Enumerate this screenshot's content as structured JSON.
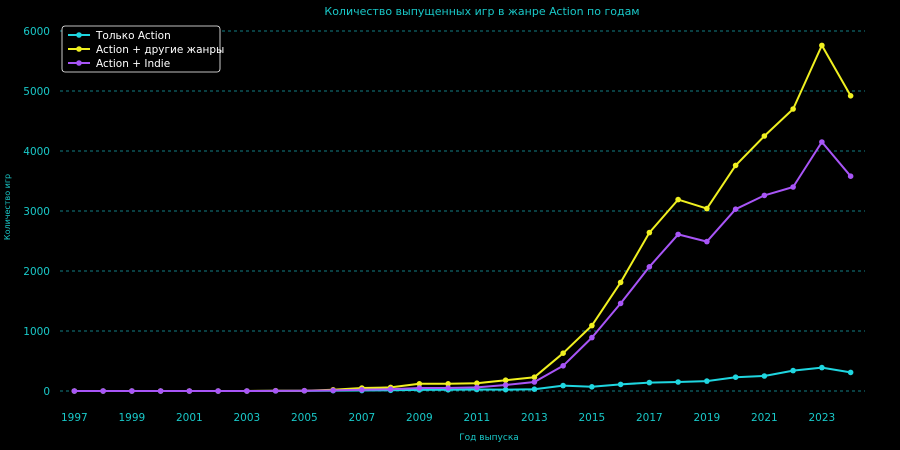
{
  "chart_data": {
    "type": "line",
    "title": "Количество выпущенных игр в жанре Action по годам",
    "xlabel": "Год выпуска",
    "ylabel": "Количество игр",
    "x": [
      1997,
      1998,
      1999,
      2000,
      2001,
      2002,
      2003,
      2004,
      2005,
      2006,
      2007,
      2008,
      2009,
      2010,
      2011,
      2012,
      2013,
      2014,
      2015,
      2016,
      2017,
      2018,
      2019,
      2020,
      2021,
      2022,
      2023,
      2024
    ],
    "x_ticks": [
      "1997",
      "1999",
      "2001",
      "2003",
      "2005",
      "2007",
      "2009",
      "2011",
      "2013",
      "2015",
      "2017",
      "2019",
      "2021",
      "2023"
    ],
    "y_ticks": [
      "0",
      "1000",
      "2000",
      "3000",
      "4000",
      "5000",
      "6000"
    ],
    "xlim": [
      1996.5,
      2024.5
    ],
    "ylim": [
      -150,
      6150
    ],
    "grid": "horizontal dashed",
    "legend_position": "top-left",
    "series": [
      {
        "name": "Только Action",
        "color": "#1fd6e0",
        "values": [
          0,
          0,
          0,
          0,
          0,
          0,
          0,
          2,
          3,
          5,
          8,
          12,
          18,
          20,
          25,
          22,
          30,
          90,
          70,
          110,
          140,
          150,
          165,
          230,
          250,
          340,
          390,
          310
        ]
      },
      {
        "name": "Action + другие жанры",
        "color": "#f0f020",
        "values": [
          0,
          0,
          0,
          0,
          0,
          0,
          0,
          5,
          5,
          20,
          50,
          60,
          120,
          120,
          130,
          180,
          230,
          630,
          1090,
          1810,
          2640,
          3190,
          3040,
          3760,
          4250,
          4700,
          5760,
          4920
        ]
      },
      {
        "name": "Action + Indie",
        "color": "#a855f7",
        "values": [
          0,
          0,
          0,
          0,
          0,
          0,
          0,
          3,
          5,
          10,
          20,
          30,
          50,
          50,
          60,
          100,
          150,
          420,
          890,
          1460,
          2070,
          2610,
          2490,
          3030,
          3260,
          3400,
          4150,
          3580
        ]
      }
    ]
  },
  "colors": {
    "background": "#000000",
    "text": "#19c8c8",
    "grid": "#19a8b0",
    "legend_text": "#ffffff",
    "legend_border": "#ffffff"
  }
}
